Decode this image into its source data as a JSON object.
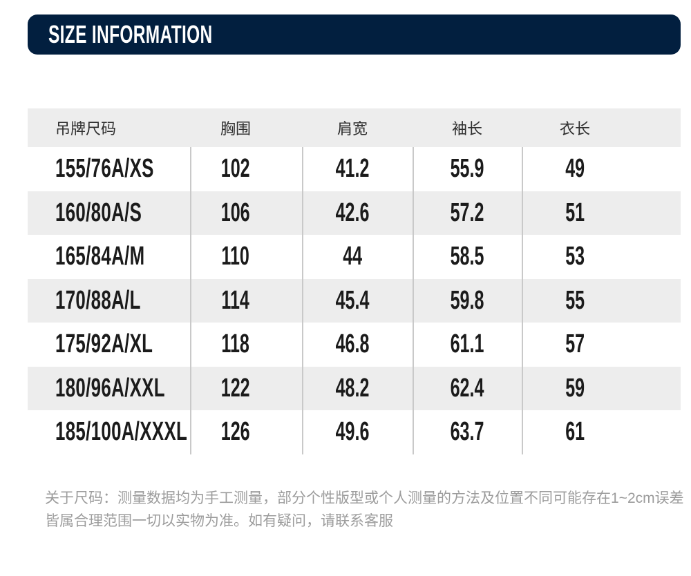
{
  "banner": {
    "title": "SIZE INFORMATION"
  },
  "table": {
    "headers": [
      "吊牌尺码",
      "胸围",
      "肩宽",
      "袖长",
      "衣长"
    ],
    "rows": [
      {
        "size": "155/76A/XS",
        "chest": "102",
        "shoulder": "41.2",
        "sleeve": "55.9",
        "length": "49"
      },
      {
        "size": "160/80A/S",
        "chest": "106",
        "shoulder": "42.6",
        "sleeve": "57.2",
        "length": "51"
      },
      {
        "size": "165/84A/M",
        "chest": "110",
        "shoulder": "44",
        "sleeve": "58.5",
        "length": "53"
      },
      {
        "size": "170/88A/L",
        "chest": "114",
        "shoulder": "45.4",
        "sleeve": "59.8",
        "length": "55"
      },
      {
        "size": "175/92A/XL",
        "chest": "118",
        "shoulder": "46.8",
        "sleeve": "61.1",
        "length": "57"
      },
      {
        "size": "180/96A/XXL",
        "chest": "122",
        "shoulder": "48.2",
        "sleeve": "62.4",
        "length": "59"
      },
      {
        "size": "185/100A/XXXL",
        "chest": "126",
        "shoulder": "49.6",
        "sleeve": "63.7",
        "length": "61"
      }
    ]
  },
  "note": {
    "line1": "关于尺码：测量数据均为手工测量，部分个性版型或个人测量的方法及位置不同可能存在1~2cm误差",
    "line2": "皆属合理范围一切以实物为准。如有疑问，请联系客服"
  },
  "colors": {
    "banner_bg": "#021F3F",
    "banner_text": "#FFFFFF",
    "row_alt_bg": "#EDEDED",
    "header_bg": "#EDEDED",
    "divider": "#C9C9C9",
    "data_text": "#1B1B1B",
    "note_text": "#9C9C9C"
  }
}
